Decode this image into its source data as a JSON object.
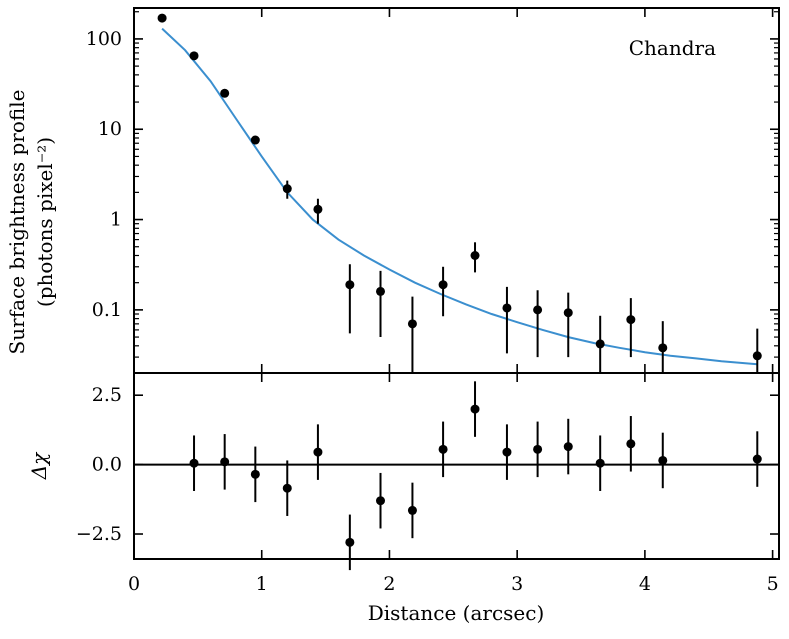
{
  "chart_data": [
    {
      "type": "scatter",
      "panel": "profile",
      "ylabel_line1": "Surface brightness profile",
      "ylabel_line2": "(photons pixel⁻²)",
      "annotation": "Chandra",
      "yscale": "log",
      "xlim": [
        0,
        5.05
      ],
      "ylim": [
        0.02,
        220
      ],
      "x_ticks": [
        0,
        1,
        2,
        3,
        4,
        5
      ],
      "y_ticks": [
        0.1,
        1,
        10,
        100
      ],
      "y_tick_labels": [
        "0.1",
        "1",
        "10",
        "100"
      ],
      "points": [
        {
          "x": 0.22,
          "y": 170,
          "y_lo": null,
          "y_hi": null
        },
        {
          "x": 0.47,
          "y": 65,
          "y_lo": null,
          "y_hi": null
        },
        {
          "x": 0.71,
          "y": 25,
          "y_lo": null,
          "y_hi": null
        },
        {
          "x": 0.95,
          "y": 7.6,
          "y_lo": null,
          "y_hi": null
        },
        {
          "x": 1.2,
          "y": 2.2,
          "y_lo": 1.7,
          "y_hi": 2.7
        },
        {
          "x": 1.44,
          "y": 1.3,
          "y_lo": 0.9,
          "y_hi": 1.7
        },
        {
          "x": 1.69,
          "y": 0.19,
          "y_lo": 0.055,
          "y_hi": 0.32
        },
        {
          "x": 1.93,
          "y": 0.16,
          "y_lo": 0.05,
          "y_hi": 0.27
        },
        {
          "x": 2.18,
          "y": 0.07,
          "y_lo": 0.02,
          "y_hi": 0.14
        },
        {
          "x": 2.42,
          "y": 0.19,
          "y_lo": 0.085,
          "y_hi": 0.3
        },
        {
          "x": 2.67,
          "y": 0.4,
          "y_lo": 0.26,
          "y_hi": 0.56
        },
        {
          "x": 2.92,
          "y": 0.105,
          "y_lo": 0.033,
          "y_hi": 0.18
        },
        {
          "x": 3.16,
          "y": 0.1,
          "y_lo": 0.03,
          "y_hi": 0.165
        },
        {
          "x": 3.4,
          "y": 0.093,
          "y_lo": 0.03,
          "y_hi": 0.155
        },
        {
          "x": 3.65,
          "y": 0.042,
          "y_lo": 0.02,
          "y_hi": 0.086
        },
        {
          "x": 3.89,
          "y": 0.078,
          "y_lo": 0.03,
          "y_hi": 0.135
        },
        {
          "x": 4.14,
          "y": 0.038,
          "y_lo": 0.02,
          "y_hi": 0.075
        },
        {
          "x": 4.88,
          "y": 0.031,
          "y_lo": 0.02,
          "y_hi": 0.062
        }
      ],
      "model": {
        "color": "#3b8fcf",
        "x": [
          0.22,
          0.4,
          0.6,
          0.8,
          1.0,
          1.2,
          1.4,
          1.6,
          1.8,
          2.0,
          2.2,
          2.4,
          2.6,
          2.8,
          3.0,
          3.2,
          3.4,
          3.6,
          3.8,
          4.0,
          4.2,
          4.4,
          4.6,
          4.88
        ],
        "y": [
          130,
          75,
          34,
          13,
          5.0,
          2.0,
          1.0,
          0.6,
          0.4,
          0.28,
          0.2,
          0.15,
          0.115,
          0.09,
          0.073,
          0.06,
          0.05,
          0.043,
          0.038,
          0.034,
          0.031,
          0.029,
          0.027,
          0.025
        ]
      }
    },
    {
      "type": "scatter",
      "panel": "residuals",
      "xlabel": "Distance (arcsec)",
      "ylabel": "Δχ",
      "xlim": [
        0,
        5.05
      ],
      "ylim": [
        -3.4,
        3.3
      ],
      "x_ticks": [
        0,
        1,
        2,
        3,
        4,
        5
      ],
      "x_tick_labels": [
        "0",
        "1",
        "2",
        "3",
        "4",
        "5"
      ],
      "y_ticks": [
        -2.5,
        0.0,
        2.5
      ],
      "y_tick_labels": [
        "−2.5",
        "0.0",
        "2.5"
      ],
      "zero_line": 0,
      "points": [
        {
          "x": 0.47,
          "y": 0.05,
          "err": 1.0
        },
        {
          "x": 0.71,
          "y": 0.1,
          "err": 1.0
        },
        {
          "x": 0.95,
          "y": -0.35,
          "err": 1.0
        },
        {
          "x": 1.2,
          "y": -0.85,
          "err": 1.0
        },
        {
          "x": 1.44,
          "y": 0.45,
          "err": 1.0
        },
        {
          "x": 1.69,
          "y": -2.8,
          "err": 1.0
        },
        {
          "x": 1.93,
          "y": -1.3,
          "err": 1.0
        },
        {
          "x": 2.18,
          "y": -1.65,
          "err": 1.0
        },
        {
          "x": 2.42,
          "y": 0.55,
          "err": 1.0
        },
        {
          "x": 2.67,
          "y": 2.0,
          "err": 1.0
        },
        {
          "x": 2.92,
          "y": 0.45,
          "err": 1.0
        },
        {
          "x": 3.16,
          "y": 0.55,
          "err": 1.0
        },
        {
          "x": 3.4,
          "y": 0.65,
          "err": 1.0
        },
        {
          "x": 3.65,
          "y": 0.05,
          "err": 1.0
        },
        {
          "x": 3.89,
          "y": 0.75,
          "err": 1.0
        },
        {
          "x": 4.14,
          "y": 0.15,
          "err": 1.0
        },
        {
          "x": 4.88,
          "y": 0.2,
          "err": 1.0
        }
      ]
    }
  ]
}
